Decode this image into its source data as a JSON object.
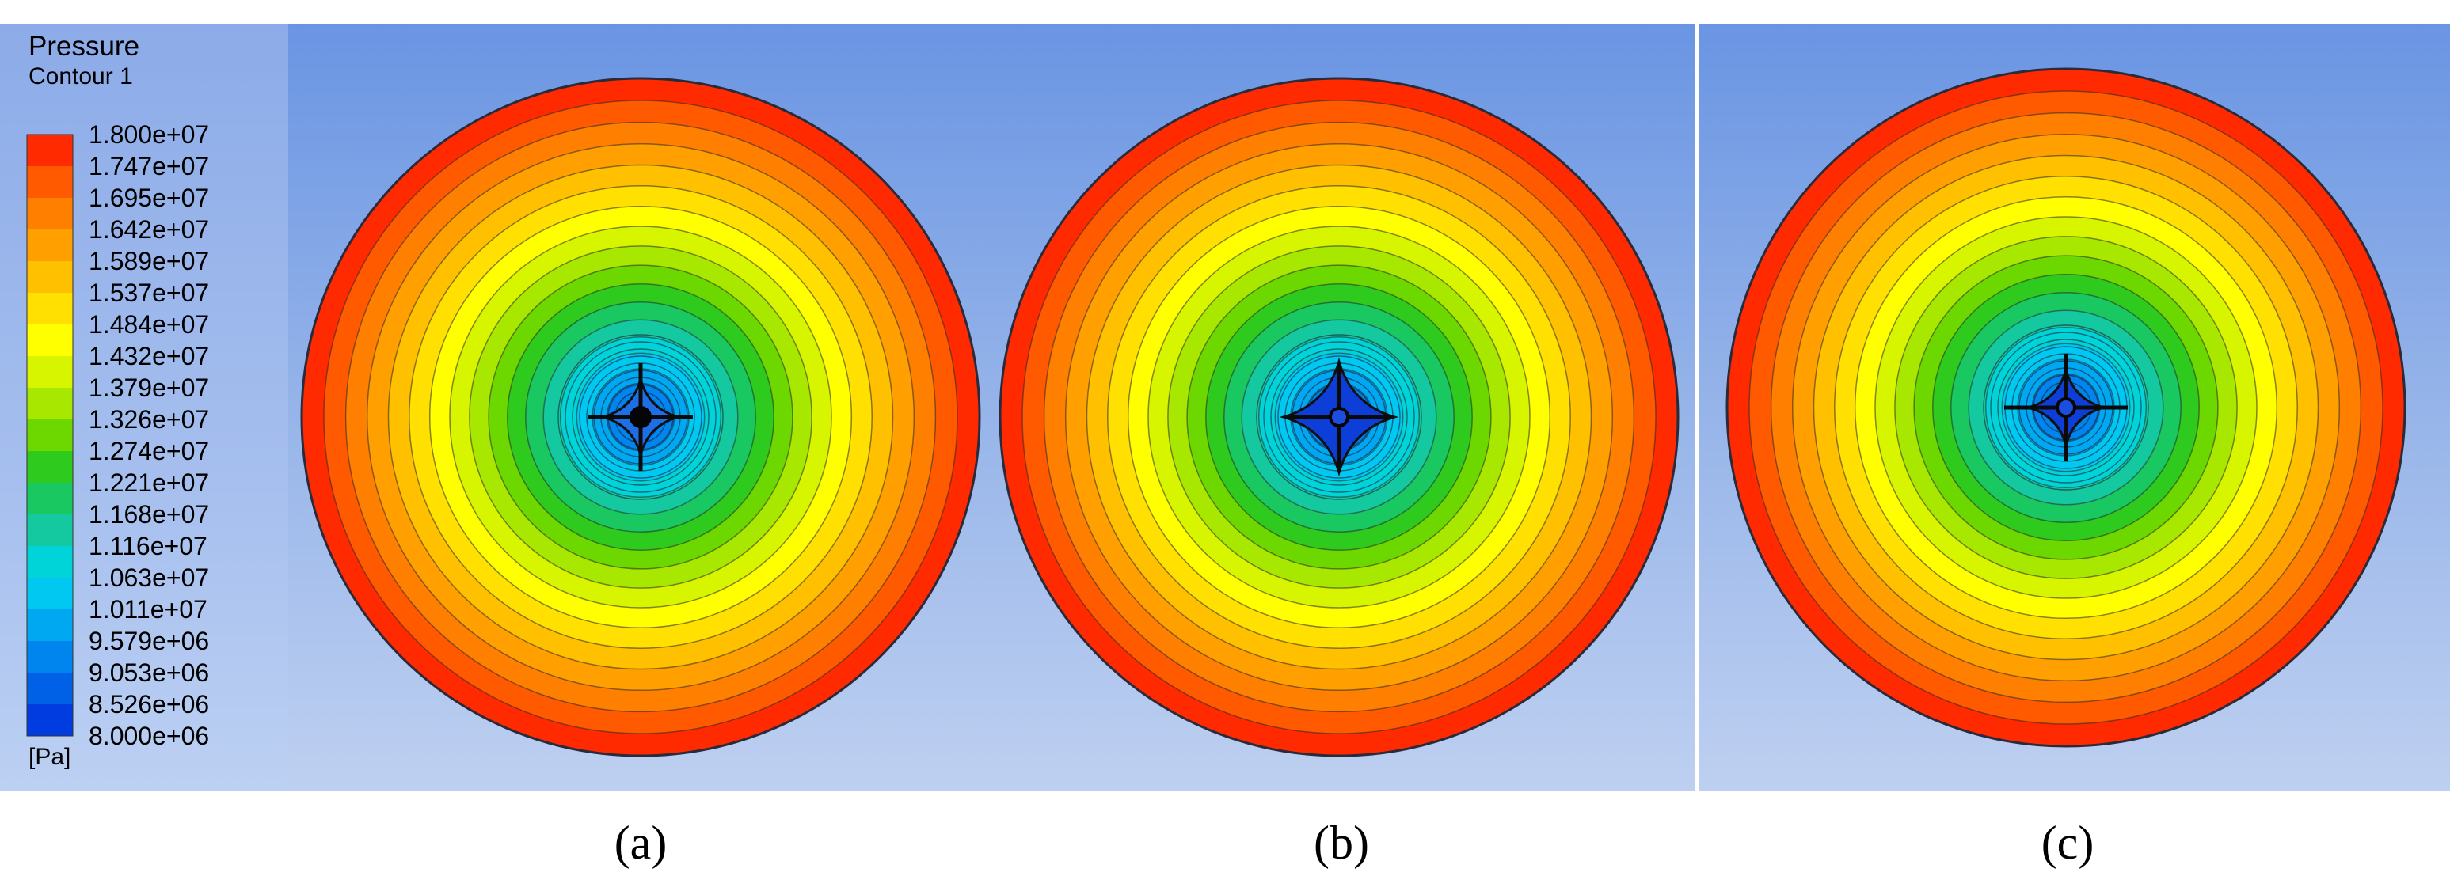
{
  "legend": {
    "title": "Pressure",
    "subtitle": "Contour 1",
    "unit": "[Pa]",
    "ticks": [
      "1.800e+07",
      "1.747e+07",
      "1.695e+07",
      "1.642e+07",
      "1.589e+07",
      "1.537e+07",
      "1.484e+07",
      "1.432e+07",
      "1.379e+07",
      "1.326e+07",
      "1.274e+07",
      "1.221e+07",
      "1.168e+07",
      "1.116e+07",
      "1.063e+07",
      "1.011e+07",
      "9.579e+06",
      "9.053e+06",
      "8.526e+06",
      "8.000e+06"
    ],
    "colors": [
      "#ff2a00",
      "#ff5a00",
      "#ff8000",
      "#ffa000",
      "#ffc000",
      "#ffe000",
      "#ffff00",
      "#d8f500",
      "#a8e800",
      "#6cd800",
      "#2ecb1e",
      "#19c860",
      "#14c8a0",
      "#00d4d8",
      "#00c8f0",
      "#00a8f2",
      "#0084ee",
      "#0060e6",
      "#003ce0"
    ]
  },
  "panels": [
    {
      "caption": "(a)"
    },
    {
      "caption": "(b)"
    },
    {
      "caption": "(c)"
    }
  ]
}
